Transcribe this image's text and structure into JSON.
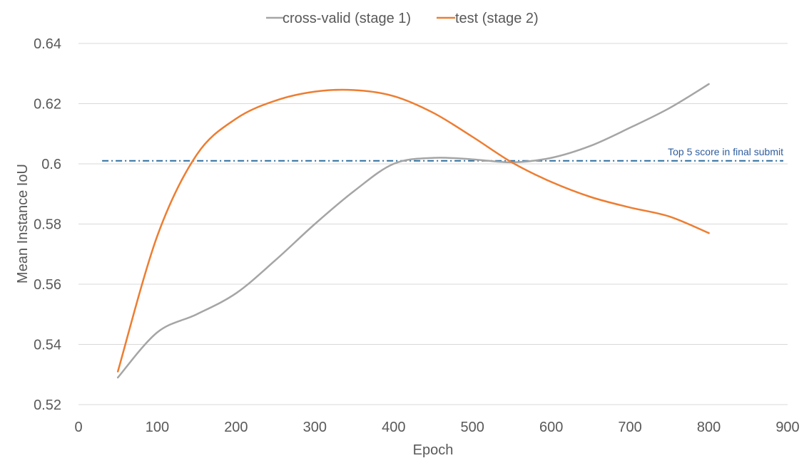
{
  "chart_data": {
    "type": "line",
    "title": "",
    "xlabel": "Epoch",
    "ylabel": "Mean Instance IoU",
    "xlim": [
      0,
      900
    ],
    "ylim": [
      0.52,
      0.64
    ],
    "x_ticks": [
      "0",
      "100",
      "200",
      "300",
      "400",
      "500",
      "600",
      "700",
      "800",
      "900"
    ],
    "y_ticks": [
      "0.52",
      "0.54",
      "0.56",
      "0.58",
      "0.6",
      "0.62",
      "0.64"
    ],
    "grid": "horizontal",
    "legend_position": "top",
    "series": [
      {
        "name": "cross-valid (stage 1)",
        "color": "#a5a5a5",
        "x": [
          50,
          100,
          150,
          200,
          250,
          300,
          350,
          400,
          450,
          500,
          550,
          600,
          650,
          700,
          750,
          800
        ],
        "y": [
          0.529,
          0.544,
          0.55,
          0.557,
          0.568,
          0.58,
          0.591,
          0.6,
          0.602,
          0.6015,
          0.6005,
          0.602,
          0.606,
          0.612,
          0.6185,
          0.6265
        ]
      },
      {
        "name": "test (stage 2)",
        "color": "#ed7d31",
        "x": [
          50,
          100,
          150,
          200,
          250,
          300,
          350,
          400,
          450,
          500,
          550,
          600,
          650,
          700,
          750,
          800
        ],
        "y": [
          0.531,
          0.576,
          0.603,
          0.615,
          0.621,
          0.624,
          0.6245,
          0.6225,
          0.617,
          0.609,
          0.6005,
          0.594,
          0.589,
          0.5855,
          0.5825,
          0.577
        ]
      }
    ],
    "reference_line": {
      "label": "Top 5 score in final submit",
      "y": 0.601,
      "x_range": [
        30,
        900
      ],
      "color": "#2e6e9e",
      "style": "dash-dot"
    }
  }
}
